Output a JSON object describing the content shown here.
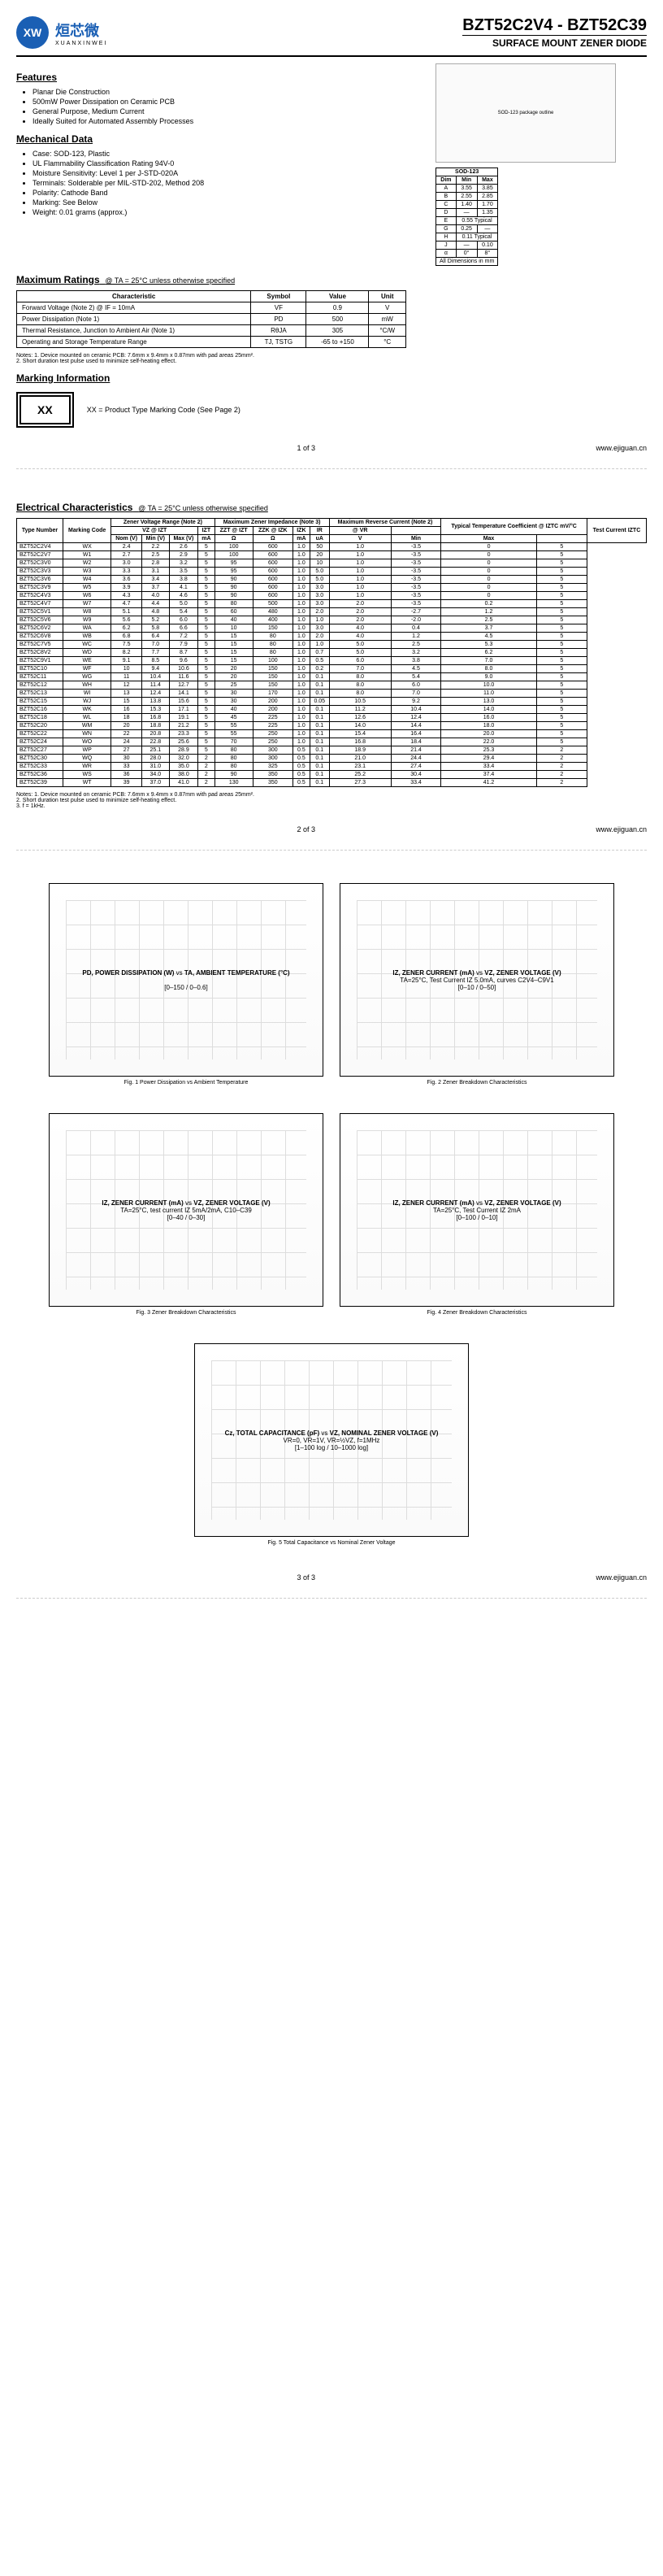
{
  "part_range": "BZT52C2V4 - BZT52C39",
  "subtitle": "SURFACE MOUNT ZENER DIODE",
  "logo": {
    "cn": "烜芯微",
    "en": "XUANXINWEI",
    "badge": "XW"
  },
  "features": {
    "title": "Features",
    "items": [
      "Planar Die Construction",
      "500mW Power Dissipation on Ceramic PCB",
      "General Purpose, Medium Current",
      "Ideally Suited for Automated Assembly Processes"
    ]
  },
  "mechanical": {
    "title": "Mechanical Data",
    "items": [
      "Case: SOD-123, Plastic",
      "UL Flammability Classification Rating 94V-0",
      "Moisture Sensitivity: Level 1 per J-STD-020A",
      "Terminals: Solderable per MIL-STD-202, Method 208",
      "Polarity: Cathode Band",
      "Marking: See Below",
      "Weight: 0.01 grams (approx.)"
    ]
  },
  "dimensions": {
    "title": "SOD-123",
    "header": [
      "Dim",
      "Min",
      "Max"
    ],
    "rows": [
      [
        "A",
        "3.55",
        "3.85"
      ],
      [
        "B",
        "2.55",
        "2.85"
      ],
      [
        "C",
        "1.40",
        "1.70"
      ],
      [
        "D",
        "—",
        "1.35"
      ],
      [
        "E",
        "0.55 Typical",
        ""
      ],
      [
        "G",
        "0.25",
        "—"
      ],
      [
        "H",
        "0.11 Typical",
        ""
      ],
      [
        "J",
        "—",
        "0.10"
      ],
      [
        "α",
        "0°",
        "8°"
      ]
    ],
    "footer": "All Dimensions in mm"
  },
  "max_ratings": {
    "title": "Maximum Ratings",
    "condition": "@ TA = 25°C unless otherwise specified",
    "header": [
      "Characteristic",
      "Symbol",
      "Value",
      "Unit"
    ],
    "rows": [
      [
        "Forward Voltage (Note 2)   @ IF = 10mA",
        "VF",
        "0.9",
        "V"
      ],
      [
        "Power Dissipation (Note 1)",
        "PD",
        "500",
        "mW"
      ],
      [
        "Thermal Resistance, Junction to Ambient Air (Note 1)",
        "RθJA",
        "305",
        "°C/W"
      ],
      [
        "Operating and Storage Temperature Range",
        "TJ, TSTG",
        "-65 to +150",
        "°C"
      ]
    ],
    "notes": "Notes:   1. Device mounted on ceramic PCB: 7.6mm x 9.4mm x 0.87mm with pad areas 25mm².\n         2. Short duration test pulse used to minimize self-heating effect."
  },
  "marking": {
    "title": "Marking Information",
    "code": "XX",
    "legend": "XX = Product Type Marking Code (See Page 2)"
  },
  "elec": {
    "title": "Electrical Characteristics",
    "condition": "@ TA = 25°C unless otherwise specified",
    "group_header": [
      "Type Number",
      "Marking Code",
      "Zener Voltage Range (Note 2)",
      "Maximum Zener Impedance (Note 3)",
      "Maximum Reverse Current (Note 2)",
      "Typical Temperature Coefficient @ IZTC mV/°C",
      "Test Current IZTC"
    ],
    "sub_header": [
      "",
      "",
      "VZ @ IZT",
      "",
      "IZT",
      "ZZT @ IZT",
      "ZZK @ IZK",
      "IZK",
      "IR",
      "@ VR",
      "",
      "",
      ""
    ],
    "unit_row": [
      "",
      "",
      "Nom (V)",
      "Min (V)",
      "Max (V)",
      "mA",
      "Ω",
      "Ω",
      "mA",
      "uA",
      "V",
      "Min",
      "Max",
      "mA"
    ],
    "rows": [
      [
        "BZT52C2V4",
        "WX",
        "2.4",
        "2.2",
        "2.6",
        "5",
        "100",
        "600",
        "1.0",
        "50",
        "1.0",
        "-3.5",
        "0",
        "5"
      ],
      [
        "BZT52C2V7",
        "W1",
        "2.7",
        "2.5",
        "2.9",
        "5",
        "100",
        "600",
        "1.0",
        "20",
        "1.0",
        "-3.5",
        "0",
        "5"
      ],
      [
        "BZT52C3V0",
        "W2",
        "3.0",
        "2.8",
        "3.2",
        "5",
        "95",
        "600",
        "1.0",
        "10",
        "1.0",
        "-3.5",
        "0",
        "5"
      ],
      [
        "BZT52C3V3",
        "W3",
        "3.3",
        "3.1",
        "3.5",
        "5",
        "95",
        "600",
        "1.0",
        "5.0",
        "1.0",
        "-3.5",
        "0",
        "5"
      ],
      [
        "BZT52C3V6",
        "W4",
        "3.6",
        "3.4",
        "3.8",
        "5",
        "90",
        "600",
        "1.0",
        "5.0",
        "1.0",
        "-3.5",
        "0",
        "5"
      ],
      [
        "BZT52C3V9",
        "W5",
        "3.9",
        "3.7",
        "4.1",
        "5",
        "90",
        "600",
        "1.0",
        "3.0",
        "1.0",
        "-3.5",
        "0",
        "5"
      ],
      [
        "BZT52C4V3",
        "W6",
        "4.3",
        "4.0",
        "4.6",
        "5",
        "90",
        "600",
        "1.0",
        "3.0",
        "1.0",
        "-3.5",
        "0",
        "5"
      ],
      [
        "BZT52C4V7",
        "W7",
        "4.7",
        "4.4",
        "5.0",
        "5",
        "80",
        "500",
        "1.0",
        "3.0",
        "2.0",
        "-3.5",
        "0.2",
        "5"
      ],
      [
        "BZT52C5V1",
        "W8",
        "5.1",
        "4.8",
        "5.4",
        "5",
        "60",
        "480",
        "1.0",
        "2.0",
        "2.0",
        "-2.7",
        "1.2",
        "5"
      ],
      [
        "BZT52C5V6",
        "W9",
        "5.6",
        "5.2",
        "6.0",
        "5",
        "40",
        "400",
        "1.0",
        "1.0",
        "2.0",
        "-2.0",
        "2.5",
        "5"
      ],
      [
        "BZT52C6V2",
        "WA",
        "6.2",
        "5.8",
        "6.6",
        "5",
        "10",
        "150",
        "1.0",
        "3.0",
        "4.0",
        "0.4",
        "3.7",
        "5"
      ],
      [
        "BZT52C6V8",
        "WB",
        "6.8",
        "6.4",
        "7.2",
        "5",
        "15",
        "80",
        "1.0",
        "2.0",
        "4.0",
        "1.2",
        "4.5",
        "5"
      ],
      [
        "BZT52C7V5",
        "WC",
        "7.5",
        "7.0",
        "7.9",
        "5",
        "15",
        "80",
        "1.0",
        "1.0",
        "5.0",
        "2.5",
        "5.3",
        "5"
      ],
      [
        "BZT52C8V2",
        "WD",
        "8.2",
        "7.7",
        "8.7",
        "5",
        "15",
        "80",
        "1.0",
        "0.7",
        "5.0",
        "3.2",
        "6.2",
        "5"
      ],
      [
        "BZT52C9V1",
        "WE",
        "9.1",
        "8.5",
        "9.6",
        "5",
        "15",
        "100",
        "1.0",
        "0.5",
        "6.0",
        "3.8",
        "7.0",
        "5"
      ],
      [
        "BZT52C10",
        "WF",
        "10",
        "9.4",
        "10.6",
        "5",
        "20",
        "150",
        "1.0",
        "0.2",
        "7.0",
        "4.5",
        "8.0",
        "5"
      ],
      [
        "BZT52C11",
        "WG",
        "11",
        "10.4",
        "11.6",
        "5",
        "20",
        "150",
        "1.0",
        "0.1",
        "8.0",
        "5.4",
        "9.0",
        "5"
      ],
      [
        "BZT52C12",
        "WH",
        "12",
        "11.4",
        "12.7",
        "5",
        "25",
        "150",
        "1.0",
        "0.1",
        "8.0",
        "6.0",
        "10.0",
        "5"
      ],
      [
        "BZT52C13",
        "WI",
        "13",
        "12.4",
        "14.1",
        "5",
        "30",
        "170",
        "1.0",
        "0.1",
        "8.0",
        "7.0",
        "11.0",
        "5"
      ],
      [
        "BZT52C15",
        "WJ",
        "15",
        "13.8",
        "15.6",
        "5",
        "30",
        "200",
        "1.0",
        "0.05",
        "10.5",
        "9.2",
        "13.0",
        "5"
      ],
      [
        "BZT52C16",
        "WK",
        "16",
        "15.3",
        "17.1",
        "5",
        "40",
        "200",
        "1.0",
        "0.1",
        "11.2",
        "10.4",
        "14.0",
        "5"
      ],
      [
        "BZT52C18",
        "WL",
        "18",
        "16.8",
        "19.1",
        "5",
        "45",
        "225",
        "1.0",
        "0.1",
        "12.6",
        "12.4",
        "16.0",
        "5"
      ],
      [
        "BZT52C20",
        "WM",
        "20",
        "18.8",
        "21.2",
        "5",
        "55",
        "225",
        "1.0",
        "0.1",
        "14.0",
        "14.4",
        "18.0",
        "5"
      ],
      [
        "BZT52C22",
        "WN",
        "22",
        "20.8",
        "23.3",
        "5",
        "55",
        "250",
        "1.0",
        "0.1",
        "15.4",
        "16.4",
        "20.0",
        "5"
      ],
      [
        "BZT52C24",
        "WO",
        "24",
        "22.8",
        "25.6",
        "5",
        "70",
        "250",
        "1.0",
        "0.1",
        "16.8",
        "18.4",
        "22.0",
        "5"
      ],
      [
        "BZT52C27",
        "WP",
        "27",
        "25.1",
        "28.9",
        "5",
        "80",
        "300",
        "0.5",
        "0.1",
        "18.9",
        "21.4",
        "25.3",
        "2"
      ],
      [
        "BZT52C30",
        "WQ",
        "30",
        "28.0",
        "32.0",
        "2",
        "80",
        "300",
        "0.5",
        "0.1",
        "21.0",
        "24.4",
        "29.4",
        "2"
      ],
      [
        "BZT52C33",
        "WR",
        "33",
        "31.0",
        "35.0",
        "2",
        "80",
        "325",
        "0.5",
        "0.1",
        "23.1",
        "27.4",
        "33.4",
        "2"
      ],
      [
        "BZT52C36",
        "WS",
        "36",
        "34.0",
        "38.0",
        "2",
        "90",
        "350",
        "0.5",
        "0.1",
        "25.2",
        "30.4",
        "37.4",
        "2"
      ],
      [
        "BZT52C39",
        "WT",
        "39",
        "37.0",
        "41.0",
        "2",
        "130",
        "350",
        "0.5",
        "0.1",
        "27.3",
        "33.4",
        "41.2",
        "2"
      ]
    ],
    "notes": "Notes:   1. Device mounted on ceramic PCB: 7.6mm x 9.4mm x 0.87mm with pad areas 25mm².\n         2. Short duration test pulse used to minimize self-heating effect.\n         3. f = 1kHz."
  },
  "charts": [
    {
      "caption": "Fig. 1  Power Dissipation vs Ambient Temperature",
      "xlabel": "TA, AMBIENT TEMPERATURE (°C)",
      "ylabel": "PD, POWER DISSIPATION (W)",
      "xrange": "0–150",
      "yrange": "0–0.6"
    },
    {
      "caption": "Fig. 2  Zener Breakdown Characteristics",
      "xlabel": "VZ, ZENER VOLTAGE (V)",
      "ylabel": "IZ, ZENER CURRENT (mA)",
      "xrange": "0–10",
      "yrange": "0–50",
      "note": "TA=25°C, Test Current IZ 5.0mA, curves C2V4–C9V1"
    },
    {
      "caption": "Fig. 3  Zener Breakdown Characteristics",
      "xlabel": "VZ, ZENER VOLTAGE (V)",
      "ylabel": "IZ, ZENER CURRENT (mA)",
      "xrange": "0–40",
      "yrange": "0–30",
      "note": "TA=25°C, test current IZ 5mA/2mA, C10–C39"
    },
    {
      "caption": "Fig. 4  Zener Breakdown Characteristics",
      "xlabel": "VZ, ZENER VOLTAGE (V)",
      "ylabel": "IZ, ZENER CURRENT (mA)",
      "xrange": "0–100",
      "yrange": "0–10",
      "note": "TA=25°C, Test Current IZ 2mA"
    },
    {
      "caption": "Fig. 5  Total Capacitance vs Nominal Zener Voltage",
      "xlabel": "VZ, NOMINAL ZENER VOLTAGE (V)",
      "ylabel": "Cz, TOTAL CAPACITANCE (pF)",
      "xrange": "1–100 log",
      "yrange": "10–1000 log",
      "note": "VR=0, VR=1V, VR=½VZ, f=1MHz"
    }
  ],
  "footer": {
    "url": "www.ejiguan.cn",
    "p1": "1 of 3",
    "p2": "2 of 3",
    "p3": "3 of 3"
  }
}
